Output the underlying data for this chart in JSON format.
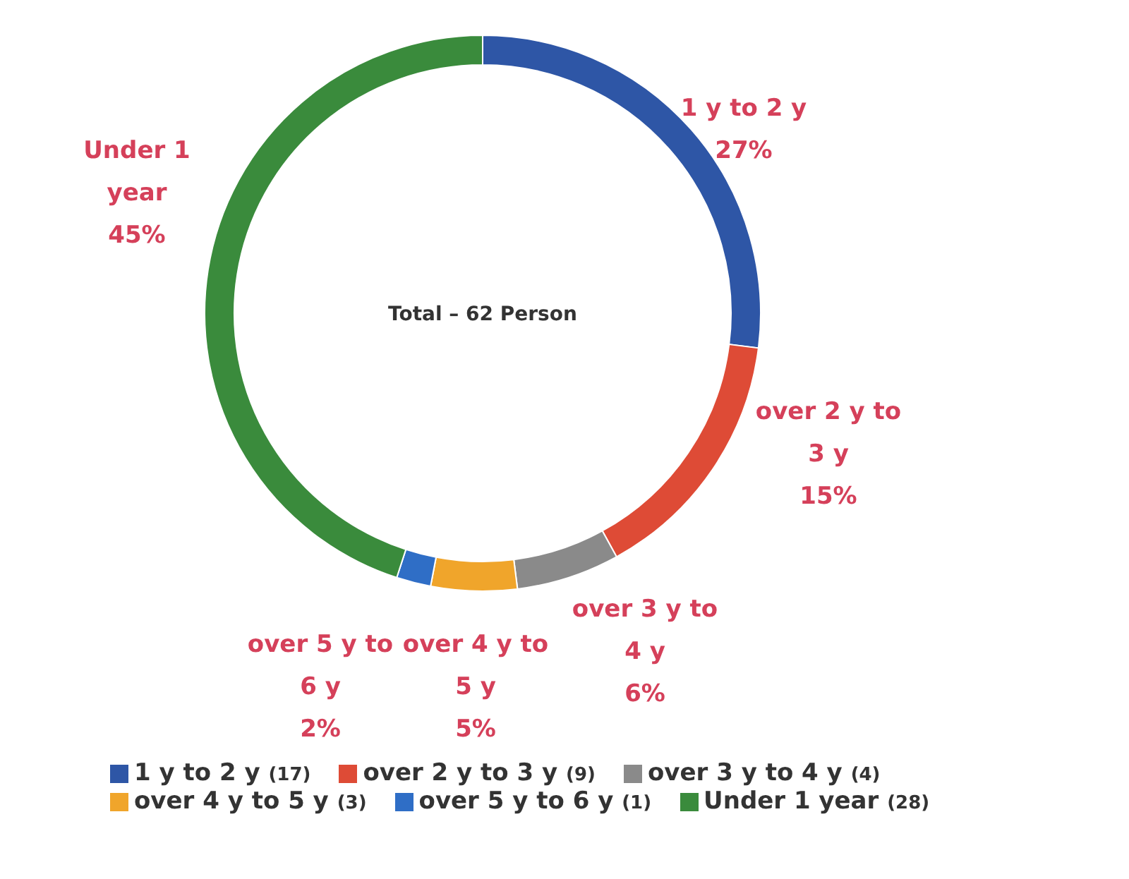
{
  "chart_data": {
    "type": "donut",
    "title": "Total – 62 Person",
    "categories": [
      "1 y to 2 y",
      "over 2 y to 3 y",
      "over 3 y to 4 y",
      "over 4 y to 5 y",
      "over 5 y to 6 y",
      "Under 1 year"
    ],
    "values": [
      27,
      15,
      6,
      5,
      2,
      45
    ],
    "annotations": [
      "(17)",
      "(9)",
      "(4)",
      "(3)",
      "(1)",
      "(28)"
    ],
    "value_labels": [
      "27%",
      "15%",
      "6%",
      "5%",
      "2%",
      "45%"
    ],
    "colors": [
      "#2e56a6",
      "#de4b36",
      "#8a8a8a",
      "#f0a52b",
      "#2f6ec6",
      "#3a8b3c"
    ],
    "legend": "bottom"
  }
}
